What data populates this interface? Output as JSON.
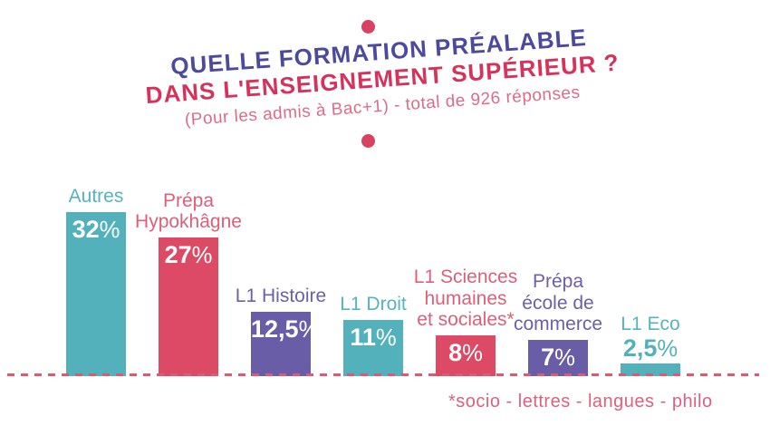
{
  "header": {
    "title_line1": "QUELLE FORMATION PRÉALABLE",
    "title_line2": "DANS L'ENSEIGNEMENT SUPÉRIEUR ?",
    "subtitle": "(Pour les admis à Bac+1) - total de 926 réponses"
  },
  "footnote": "*socio - lettres - langues - philo",
  "palette": {
    "teal": "#52b1ba",
    "pink": "#dc4a66",
    "purple": "#695da7",
    "teal_label": "#55b4bc",
    "pink_label": "#dd6078",
    "purple_label": "#6b60a9",
    "title_purple": "#4c4a9c",
    "title_pink": "#d6335c",
    "subtitle_pink": "#de6c86",
    "footnote_pink": "#dd617e",
    "dot_pink": "#d8415f",
    "dashed_line": "#dc5a74",
    "value_text": "#ffffff"
  },
  "chart_data": {
    "type": "bar",
    "title": "QUELLE FORMATION PRÉALABLE DANS L'ENSEIGNEMENT SUPÉRIEUR ?",
    "subtitle": "(Pour les admis à Bac+1) - total de 926 réponses",
    "total_responses": 926,
    "unit": "%",
    "grid": false,
    "legend": false,
    "baseline_style": "dashed",
    "footnote": "*socio - lettres - langues - philo",
    "categories": [
      "Autres",
      "Prépa Hypokhâgne",
      "L1 Histoire",
      "L1 Droit",
      "L1 Sciences humaines et sociales*",
      "Prépa école de commerce",
      "L1 Eco"
    ],
    "values": [
      32,
      27,
      12.5,
      11,
      8,
      7,
      2.5
    ],
    "value_labels": [
      "32%",
      "27%",
      "12,5%",
      "11%",
      "8%",
      "7%",
      "2,5%"
    ],
    "bars": [
      {
        "label_lines": [
          "Autres"
        ],
        "value": 32,
        "display": "32",
        "color_key": "teal",
        "label_color_key": "teal_label",
        "value_position": "inside"
      },
      {
        "label_lines": [
          "Prépa",
          "Hypokhâgne"
        ],
        "value": 27,
        "display": "27",
        "color_key": "pink",
        "label_color_key": "pink_label",
        "value_position": "inside"
      },
      {
        "label_lines": [
          "L1 Histoire"
        ],
        "value": 12.5,
        "display": "12,5",
        "color_key": "purple",
        "label_color_key": "purple_label",
        "value_position": "inside"
      },
      {
        "label_lines": [
          "L1 Droit"
        ],
        "value": 11,
        "display": "11",
        "color_key": "teal",
        "label_color_key": "teal_label",
        "value_position": "inside"
      },
      {
        "label_lines": [
          "L1 Sciences",
          "humaines",
          "et sociales*"
        ],
        "value": 8,
        "display": "8",
        "color_key": "pink",
        "label_color_key": "pink_label",
        "value_position": "inside"
      },
      {
        "label_lines": [
          "Prépa",
          "école de",
          "commerce"
        ],
        "value": 7,
        "display": "7",
        "color_key": "purple",
        "label_color_key": "purple_label",
        "value_position": "inside"
      },
      {
        "label_lines": [
          "L1 Eco"
        ],
        "value": 2.5,
        "display": "2,5",
        "color_key": "teal",
        "label_color_key": "teal_label",
        "value_position": "above"
      }
    ]
  }
}
